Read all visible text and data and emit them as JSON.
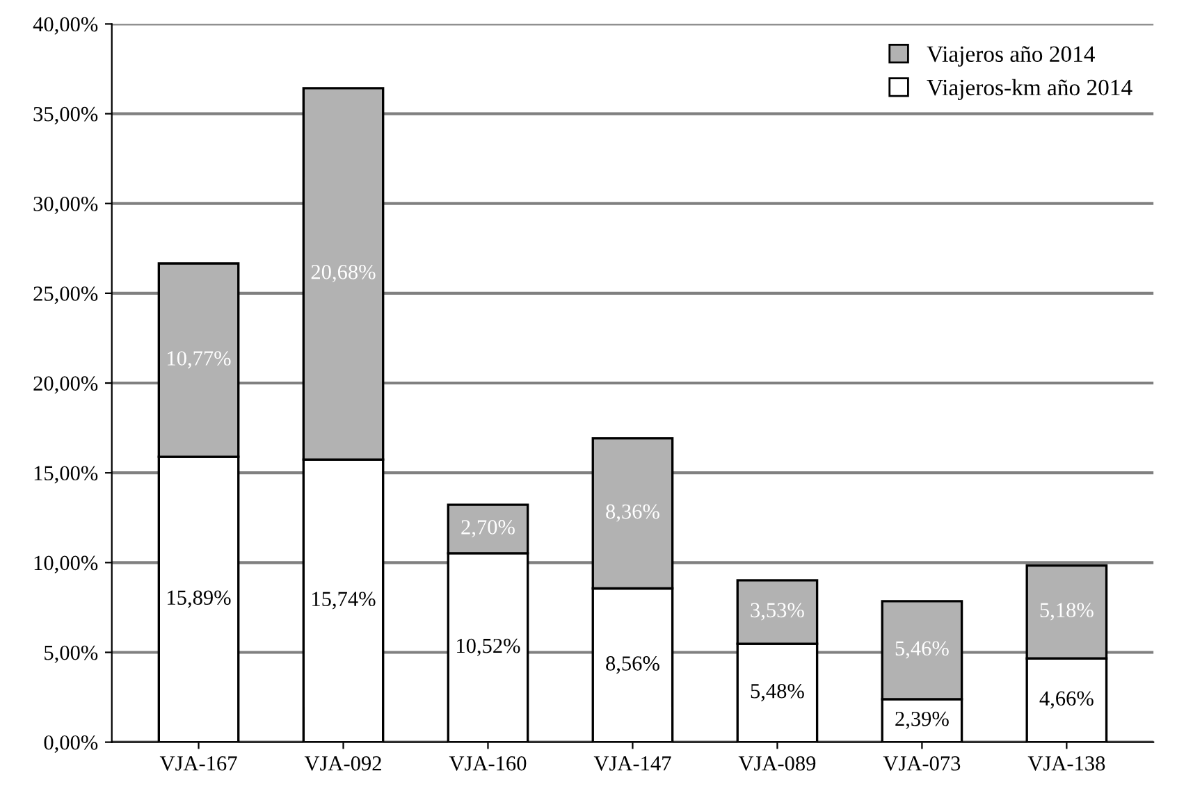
{
  "chart_data": {
    "type": "bar",
    "stacked": true,
    "categories": [
      "VJA-167",
      "VJA-092",
      "VJA-160",
      "VJA-147",
      "VJA-089",
      "VJA-073",
      "VJA-138"
    ],
    "series": [
      {
        "name": "Viajeros-km año 2014",
        "color": "#ffffff",
        "values": [
          15.89,
          15.74,
          10.52,
          8.56,
          5.48,
          2.39,
          4.66
        ],
        "value_labels": [
          "15,89%",
          "15,74%",
          "10,52%",
          "8,56%",
          "5,48%",
          "2,39%",
          "4,66%"
        ]
      },
      {
        "name": "Viajeros año 2014",
        "color": "#b2b2b2",
        "values": [
          10.77,
          20.68,
          2.7,
          8.36,
          3.53,
          5.46,
          5.18
        ],
        "value_labels": [
          "10,77%",
          "20,68%",
          "2,70%",
          "8,36%",
          "3,53%",
          "5,46%",
          "5,18%"
        ]
      }
    ],
    "ylim": [
      0,
      40
    ],
    "yticks": [
      {
        "value": 0,
        "label": "0,00%"
      },
      {
        "value": 5,
        "label": "5,00%"
      },
      {
        "value": 10,
        "label": "10,00%"
      },
      {
        "value": 15,
        "label": "15,00%"
      },
      {
        "value": 20,
        "label": "20,00%"
      },
      {
        "value": 25,
        "label": "25,00%"
      },
      {
        "value": 30,
        "label": "30,00%"
      },
      {
        "value": 35,
        "label": "35,00%"
      },
      {
        "value": 40,
        "label": "40,00%"
      }
    ],
    "grid": "y",
    "legend": "top right"
  }
}
